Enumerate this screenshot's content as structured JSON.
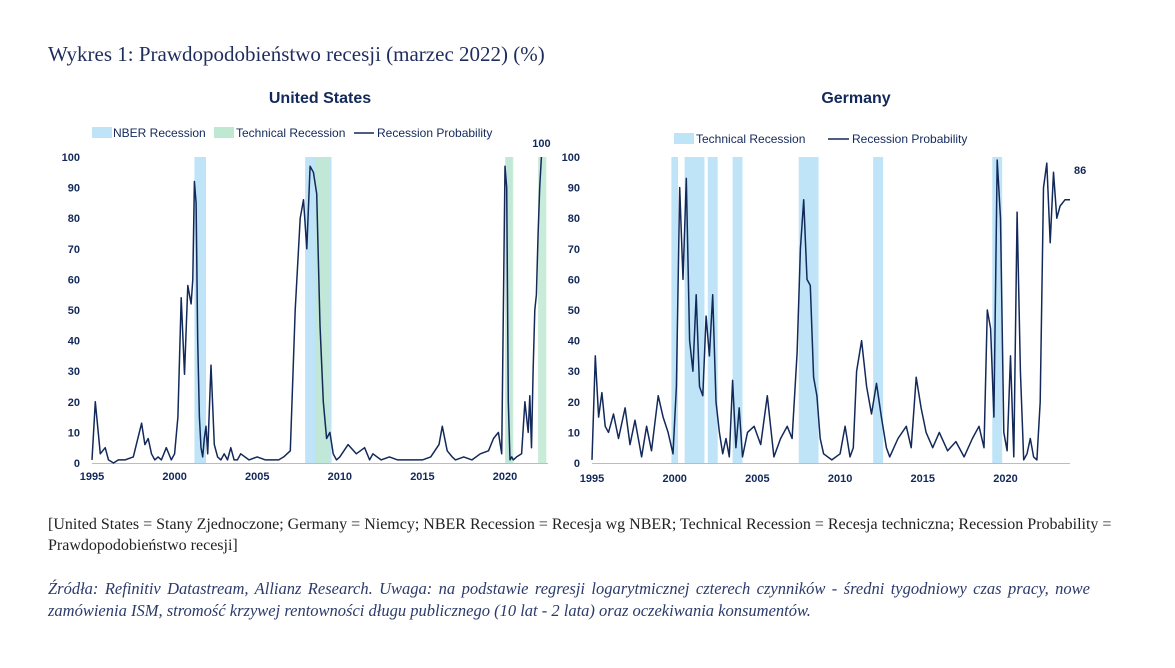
{
  "figure_title": "Wykres 1: Prawdopodobieństwo recesji (marzec 2022) (%)",
  "translation_note": "[United States = Stany Zjednoczone; Germany = Niemcy; NBER Recession = Recesja wg NBER; Technical Recession = Recesja techniczna; Recession Probability = Prawdopodobieństwo recesji]",
  "source_note": "Źródła: Refinitiv Datastream, Allianz Research. Uwaga: na podstawie regresji logarytmicznej czterech czynników - średni tygodniowy czas pracy, nowe zamówienia ISM, stromość krzywej rentowności długu publicznego (10 lat - 2 lata) oraz oczekiwania konsumentów.",
  "colors": {
    "line": "#13295a",
    "nber": "#bfe4f7",
    "technical_us": "#bfe8d2",
    "technical_de": "#bfe4f7",
    "text": "#13295a"
  },
  "chart_data": [
    {
      "type": "line",
      "title": "United States",
      "legend": [
        "NBER Recession",
        "Technical Recession",
        "Recession Probability"
      ],
      "legend_placement": "top",
      "grid": false,
      "xlim": [
        1995,
        2022.6
      ],
      "ylim": [
        0,
        100
      ],
      "x_ticks": [
        "1995",
        "2000",
        "2005",
        "2010",
        "2015",
        "2020"
      ],
      "y_ticks": [
        "0",
        "10",
        "20",
        "30",
        "40",
        "50",
        "60",
        "70",
        "80",
        "90",
        "100"
      ],
      "nber_recessions": [
        [
          2001.2,
          2001.9
        ],
        [
          2007.9,
          2009.5
        ],
        [
          2020.1,
          2020.4
        ]
      ],
      "technical_recessions": [
        [
          2008.5,
          2009.4
        ],
        [
          2020.0,
          2020.5
        ],
        [
          2022.0,
          2022.5
        ]
      ],
      "annotation": {
        "x": 2022.2,
        "y": 100,
        "text": "100"
      },
      "series": [
        {
          "name": "Recession Probability",
          "x": [
            1995.0,
            1995.2,
            1995.5,
            1995.8,
            1996.0,
            1996.3,
            1996.6,
            1997.0,
            1997.5,
            1998.0,
            1998.2,
            1998.4,
            1998.6,
            1998.8,
            1999.0,
            1999.2,
            1999.5,
            1999.8,
            2000.0,
            2000.2,
            2000.4,
            2000.6,
            2000.8,
            2001.0,
            2001.1,
            2001.2,
            2001.3,
            2001.4,
            2001.5,
            2001.6,
            2001.7,
            2001.8,
            2001.9,
            2002.0,
            2002.2,
            2002.4,
            2002.6,
            2002.8,
            2003.0,
            2003.2,
            2003.4,
            2003.6,
            2003.8,
            2004.0,
            2004.5,
            2005.0,
            2005.5,
            2006.0,
            2006.3,
            2006.6,
            2007.0,
            2007.3,
            2007.6,
            2007.8,
            2008.0,
            2008.2,
            2008.4,
            2008.6,
            2008.8,
            2009.0,
            2009.2,
            2009.4,
            2009.6,
            2009.8,
            2010.0,
            2010.5,
            2011.0,
            2011.5,
            2011.8,
            2012.0,
            2012.5,
            2013.0,
            2013.5,
            2014.0,
            2014.5,
            2015.0,
            2015.5,
            2016.0,
            2016.2,
            2016.5,
            2016.8,
            2017.0,
            2017.5,
            2018.0,
            2018.5,
            2019.0,
            2019.3,
            2019.6,
            2019.8,
            2020.0,
            2020.1,
            2020.2,
            2020.3,
            2020.4,
            2020.5,
            2020.7,
            2021.0,
            2021.2,
            2021.4,
            2021.5,
            2021.6,
            2021.7,
            2021.8,
            2021.9,
            2022.0,
            2022.1,
            2022.2
          ],
          "values": [
            1,
            20,
            3,
            5,
            1,
            0,
            1,
            1,
            2,
            13,
            6,
            8,
            3,
            1,
            2,
            1,
            5,
            1,
            3,
            15,
            54,
            29,
            58,
            52,
            60,
            92,
            85,
            40,
            15,
            5,
            2,
            8,
            12,
            3,
            32,
            6,
            2,
            1,
            3,
            1,
            5,
            1,
            1,
            3,
            1,
            2,
            1,
            1,
            1,
            2,
            4,
            50,
            80,
            86,
            70,
            97,
            95,
            88,
            45,
            20,
            8,
            10,
            3,
            1,
            2,
            6,
            3,
            5,
            1,
            3,
            1,
            2,
            1,
            1,
            1,
            1,
            2,
            6,
            12,
            4,
            2,
            1,
            2,
            1,
            3,
            4,
            8,
            10,
            3,
            97,
            90,
            20,
            1,
            2,
            1,
            2,
            3,
            20,
            10,
            22,
            5,
            30,
            50,
            55,
            75,
            90,
            100
          ]
        }
      ]
    },
    {
      "type": "line",
      "title": "Germany",
      "legend": [
        "Technical Recession",
        "Recession Probability"
      ],
      "legend_placement": "top",
      "grid": false,
      "xlim": [
        1995,
        2023.9
      ],
      "ylim": [
        0,
        100
      ],
      "x_ticks": [
        "1995",
        "2000",
        "2005",
        "2010",
        "2015",
        "2020"
      ],
      "y_ticks": [
        "0",
        "10",
        "20",
        "30",
        "40",
        "50",
        "60",
        "70",
        "80",
        "90",
        "100"
      ],
      "technical_recessions": [
        [
          1999.8,
          2000.2
        ],
        [
          2000.6,
          2001.8
        ],
        [
          2002.0,
          2002.6
        ],
        [
          2003.5,
          2004.1
        ],
        [
          2007.5,
          2008.7
        ],
        [
          2012.0,
          2012.6
        ],
        [
          2019.2,
          2019.8
        ]
      ],
      "annotation": {
        "x": 2023.9,
        "y": 86,
        "text": "86"
      },
      "series": [
        {
          "name": "Recession Probability",
          "x": [
            1995.0,
            1995.2,
            1995.4,
            1995.6,
            1995.8,
            1996.0,
            1996.3,
            1996.6,
            1997.0,
            1997.3,
            1997.6,
            1998.0,
            1998.3,
            1998.6,
            1999.0,
            1999.3,
            1999.6,
            1999.9,
            2000.1,
            2000.3,
            2000.5,
            2000.7,
            2000.9,
            2001.1,
            2001.3,
            2001.5,
            2001.7,
            2001.9,
            2002.1,
            2002.3,
            2002.5,
            2002.7,
            2002.9,
            2003.1,
            2003.3,
            2003.5,
            2003.7,
            2003.9,
            2004.1,
            2004.4,
            2004.8,
            2005.2,
            2005.6,
            2006.0,
            2006.4,
            2006.8,
            2007.1,
            2007.4,
            2007.6,
            2007.8,
            2008.0,
            2008.2,
            2008.4,
            2008.6,
            2008.8,
            2009.0,
            2009.5,
            2010.0,
            2010.3,
            2010.6,
            2010.8,
            2011.0,
            2011.3,
            2011.6,
            2011.9,
            2012.2,
            2012.5,
            2012.8,
            2013.0,
            2013.5,
            2014.0,
            2014.3,
            2014.6,
            2014.9,
            2015.2,
            2015.6,
            2016.0,
            2016.5,
            2017.0,
            2017.5,
            2018.0,
            2018.4,
            2018.7,
            2018.9,
            2019.1,
            2019.3,
            2019.5,
            2019.7,
            2019.9,
            2020.1,
            2020.3,
            2020.5,
            2020.7,
            2020.9,
            2021.1,
            2021.3,
            2021.5,
            2021.7,
            2021.9,
            2022.1,
            2022.3,
            2022.5,
            2022.7,
            2022.9,
            2023.1,
            2023.3,
            2023.6,
            2023.9
          ],
          "values": [
            1,
            35,
            15,
            23,
            12,
            10,
            16,
            8,
            18,
            6,
            14,
            2,
            12,
            4,
            22,
            15,
            10,
            3,
            25,
            90,
            60,
            93,
            40,
            30,
            55,
            25,
            22,
            48,
            35,
            55,
            20,
            10,
            3,
            8,
            2,
            27,
            5,
            18,
            2,
            10,
            12,
            6,
            22,
            2,
            8,
            12,
            8,
            36,
            70,
            86,
            60,
            58,
            28,
            22,
            8,
            3,
            1,
            3,
            12,
            2,
            5,
            30,
            40,
            25,
            16,
            26,
            15,
            5,
            2,
            8,
            12,
            5,
            28,
            18,
            10,
            5,
            10,
            4,
            7,
            2,
            8,
            12,
            5,
            50,
            44,
            15,
            99,
            80,
            10,
            4,
            35,
            2,
            82,
            30,
            1,
            3,
            8,
            2,
            1,
            20,
            90,
            98,
            72,
            95,
            80,
            84,
            86,
            86
          ]
        }
      ]
    }
  ]
}
